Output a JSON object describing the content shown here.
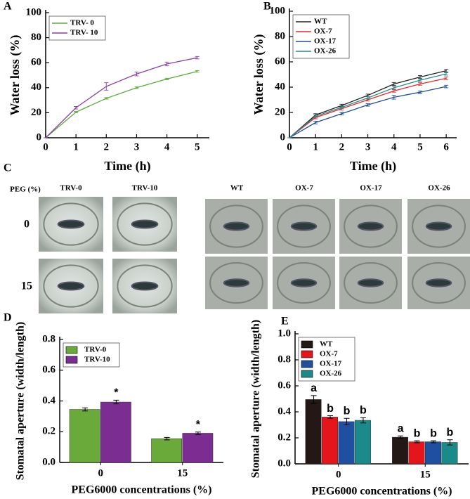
{
  "chart_data": [
    {
      "type": "line",
      "label": "A",
      "xlabel": "Time (h)",
      "ylabel": "Water loss (%)",
      "x": [
        0,
        1,
        2,
        3,
        4,
        5
      ],
      "xlim": [
        0,
        5.4
      ],
      "xticks": [
        0,
        1,
        2,
        3,
        4,
        5
      ],
      "ylim": [
        0,
        100
      ],
      "yticks": [
        0,
        20,
        40,
        60,
        80,
        100
      ],
      "legend": "top-left",
      "series": [
        {
          "name": "TRV- 0",
          "color": "#5aab3c",
          "values": [
            0,
            20.5,
            31.5,
            40,
            47,
            53
          ],
          "errors": [
            0,
            0.6,
            0.6,
            0.6,
            0.6,
            0.6
          ]
        },
        {
          "name": "TRV- 10",
          "color": "#8a3fa8",
          "values": [
            0,
            24,
            41,
            51,
            59,
            64
          ],
          "errors": [
            0,
            1,
            3,
            1.5,
            1.5,
            1
          ]
        }
      ]
    },
    {
      "type": "line",
      "label": "B",
      "xlabel": "Time (h)",
      "ylabel": "Water loss (%)",
      "x": [
        0,
        1,
        2,
        3,
        4,
        5,
        6
      ],
      "xlim": [
        0,
        6.4
      ],
      "xticks": [
        0,
        1,
        2,
        3,
        4,
        5,
        6
      ],
      "ylim": [
        0,
        100
      ],
      "yticks": [
        0,
        20,
        40,
        60,
        80,
        100
      ],
      "legend": "top-left",
      "series": [
        {
          "name": "WT",
          "color": "#222222",
          "values": [
            0,
            18,
            25.5,
            33.5,
            42.5,
            48,
            53
          ],
          "errors": [
            0,
            1,
            1,
            1,
            1.2,
            1.2,
            1
          ]
        },
        {
          "name": "OX-7",
          "color": "#e8282b",
          "values": [
            0,
            16,
            23,
            30,
            37,
            42.5,
            47
          ],
          "errors": [
            0,
            1,
            1,
            1,
            1,
            1,
            1
          ]
        },
        {
          "name": "OX-17",
          "color": "#1f4e9c",
          "values": [
            0,
            12,
            19,
            26,
            32,
            36,
            40.5
          ],
          "errors": [
            0,
            1,
            1,
            1,
            1.5,
            1,
            1
          ]
        },
        {
          "name": "OX-26",
          "color": "#2a8c8c",
          "values": [
            0,
            17,
            24,
            31.5,
            39.5,
            45.5,
            50.5
          ],
          "errors": [
            0,
            1,
            1,
            1,
            1,
            1,
            1
          ]
        }
      ]
    },
    {
      "type": "bar",
      "label": "D",
      "xlabel": "PEG6000 concentrations (%)",
      "ylabel": "Stomatal aperture (width/length)",
      "categories": [
        "0",
        "15"
      ],
      "ylim": [
        0,
        0.8
      ],
      "yticks": [
        {
          "value": 0,
          "label": "0.0"
        },
        0.2,
        0.4,
        0.6,
        0.8
      ],
      "legend": "top-left",
      "series": [
        {
          "name": "TRV-0",
          "color": "#6aaa3a",
          "values": [
            0.345,
            0.155
          ],
          "errors": [
            0.01,
            0.008
          ],
          "letters": [
            null,
            null
          ]
        },
        {
          "name": "TRV-10",
          "color": "#7b2d91",
          "values": [
            0.393,
            0.19
          ],
          "errors": [
            0.012,
            0.008
          ],
          "letters": [
            "*",
            "*"
          ]
        }
      ]
    },
    {
      "type": "bar",
      "label": "E",
      "xlabel": "PEG6000 concentrations (%)",
      "ylabel": "Stomatal aperture (width/length)",
      "categories": [
        "0",
        "15"
      ],
      "ylim": [
        0,
        1.0
      ],
      "yticks": [
        {
          "value": 0,
          "label": "0.0"
        },
        0.2,
        0.4,
        0.6,
        0.8,
        {
          "value": 1,
          "label": "1.0"
        }
      ],
      "legend": "top-left",
      "series": [
        {
          "name": "WT",
          "color": "#231815",
          "values": [
            0.495,
            0.205
          ],
          "errors": [
            0.03,
            0.01
          ],
          "letters": [
            "a",
            "a"
          ]
        },
        {
          "name": "OX-7",
          "color": "#e4161c",
          "values": [
            0.36,
            0.17
          ],
          "errors": [
            0.01,
            0.008
          ],
          "letters": [
            "b",
            "b"
          ]
        },
        {
          "name": "OX-17",
          "color": "#1e4fa0",
          "values": [
            0.325,
            0.17
          ],
          "errors": [
            0.025,
            0.008
          ],
          "letters": [
            "b",
            "b"
          ]
        },
        {
          "name": "OX-26",
          "color": "#1b8a8a",
          "values": [
            0.335,
            0.165
          ],
          "errors": [
            0.02,
            0.02
          ],
          "letters": [
            "b",
            "b"
          ]
        }
      ]
    }
  ],
  "micrographs": {
    "label": "C",
    "row_header": "PEG (%)",
    "rows": [
      "0",
      "15"
    ],
    "left_columns": [
      "TRV-0",
      "TRV-10"
    ],
    "right_columns": [
      "WT",
      "OX-7",
      "OX-17",
      "OX-26"
    ]
  }
}
